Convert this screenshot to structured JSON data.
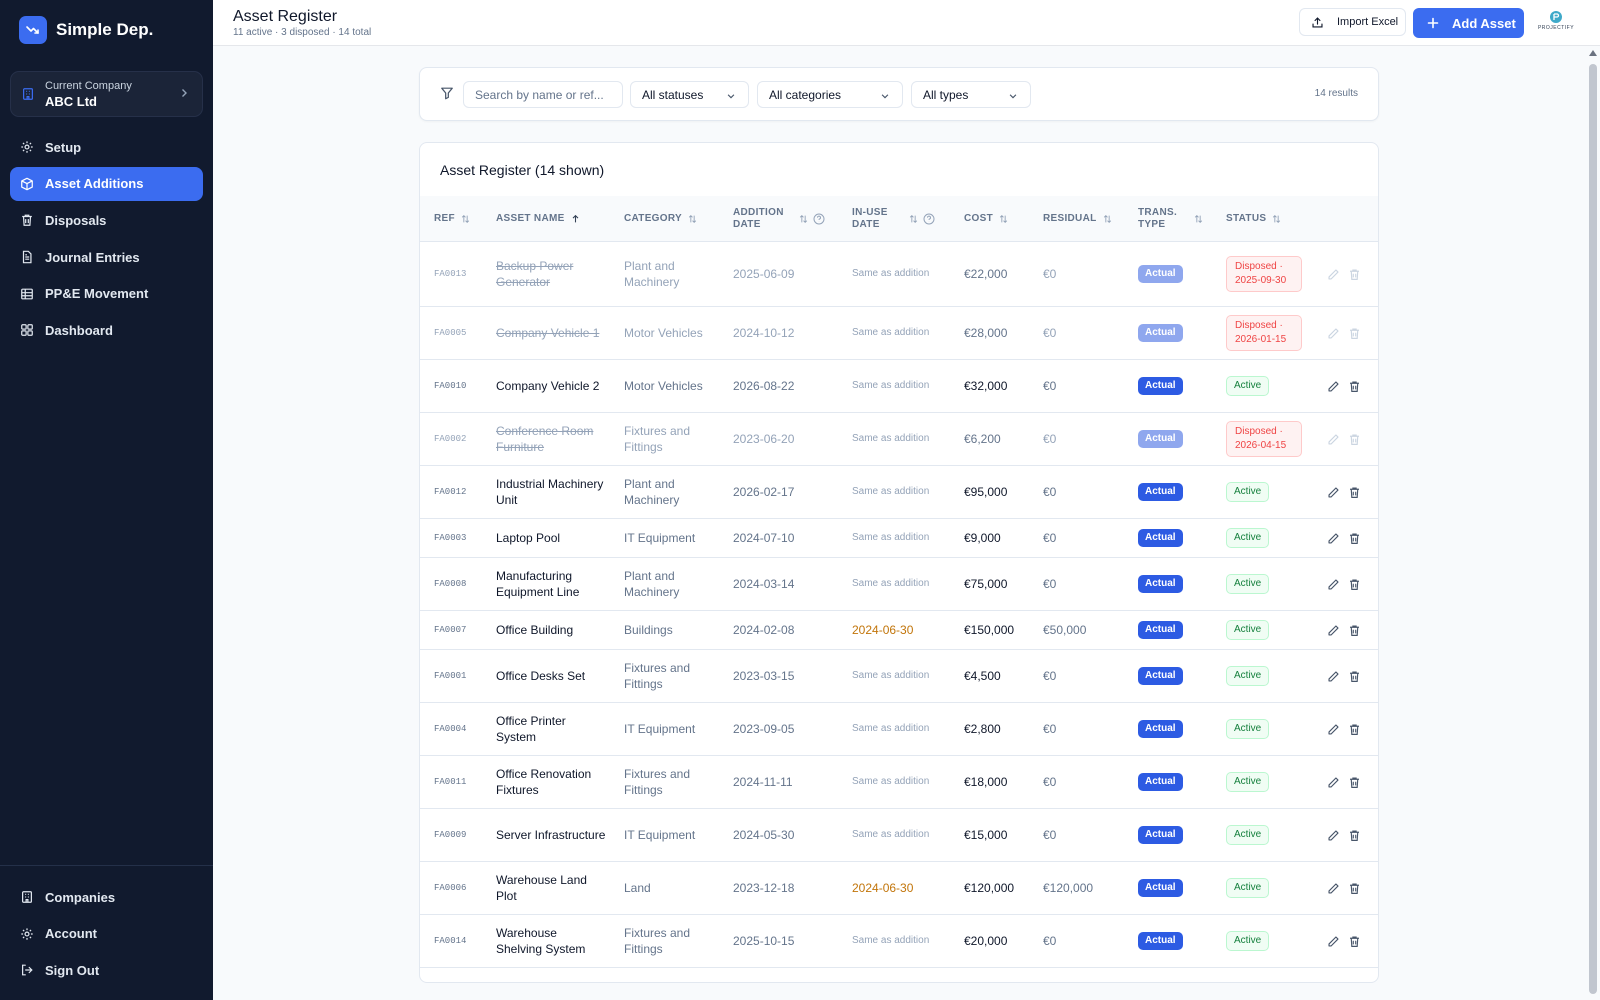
{
  "sidebar": {
    "brand": "Simple Dep.",
    "company_label": "Current Company",
    "company_name": "ABC Ltd",
    "nav": [
      {
        "label": "Setup",
        "icon": "gear-icon"
      },
      {
        "label": "Asset Additions",
        "icon": "box-icon",
        "active": true
      },
      {
        "label": "Disposals",
        "icon": "trash-icon"
      },
      {
        "label": "Journal Entries",
        "icon": "document-icon"
      },
      {
        "label": "PP&E Movement",
        "icon": "table-icon"
      },
      {
        "label": "Dashboard",
        "icon": "grid-icon"
      }
    ],
    "bottom_nav": [
      {
        "label": "Companies",
        "icon": "building-icon"
      },
      {
        "label": "Account",
        "icon": "gear-icon"
      },
      {
        "label": "Sign Out",
        "icon": "sign-out-icon"
      }
    ]
  },
  "header": {
    "title": "Asset Register",
    "subtitle": "11 active · 3 disposed · 14 total",
    "import_label": "Import Excel",
    "add_label": "Add Asset",
    "brand_mark": "PROJECTIFY"
  },
  "filters": {
    "search_placeholder": "Search by name or ref...",
    "status": "All statuses",
    "category": "All categories",
    "type": "All types",
    "results": "14 results"
  },
  "table": {
    "title": "Asset Register (14 shown)",
    "columns": {
      "ref": "REF",
      "name": "ASSET NAME",
      "category": "CATEGORY",
      "addition_date": "ADDITION DATE",
      "in_use_date": "IN-USE DATE",
      "cost": "COST",
      "residual": "RESIDUAL",
      "trans_type": "TRANS. TYPE",
      "status": "STATUS"
    },
    "rows": [
      {
        "ref": "FA0013",
        "name": "Backup Power Generator",
        "category": "Plant and Machinery",
        "addition_date": "2025-06-09",
        "in_use": "Same as addition",
        "cost": "€22,000",
        "residual": "€0",
        "type": "Actual",
        "status": "Disposed · 2025-09-30",
        "disposed": true
      },
      {
        "ref": "FA0005",
        "name": "Company Vehicle 1",
        "category": "Motor Vehicles",
        "addition_date": "2024-10-12",
        "in_use": "Same as addition",
        "cost": "€28,000",
        "residual": "€0",
        "type": "Actual",
        "status": "Disposed · 2026-01-15",
        "disposed": true
      },
      {
        "ref": "FA0010",
        "name": "Company Vehicle 2",
        "category": "Motor Vehicles",
        "addition_date": "2026-08-22",
        "in_use": "Same as addition",
        "cost": "€32,000",
        "residual": "€0",
        "type": "Actual",
        "status": "Active",
        "disposed": false
      },
      {
        "ref": "FA0002",
        "name": "Conference Room Furniture",
        "category": "Fixtures and Fittings",
        "addition_date": "2023-06-20",
        "in_use": "Same as addition",
        "cost": "€6,200",
        "residual": "€0",
        "type": "Actual",
        "status": "Disposed · 2026-04-15",
        "disposed": true
      },
      {
        "ref": "FA0012",
        "name": "Industrial Machinery Unit",
        "category": "Plant and Machinery",
        "addition_date": "2026-02-17",
        "in_use": "Same as addition",
        "cost": "€95,000",
        "residual": "€0",
        "type": "Actual",
        "status": "Active",
        "disposed": false
      },
      {
        "ref": "FA0003",
        "name": "Laptop Pool",
        "category": "IT Equipment",
        "addition_date": "2024-07-10",
        "in_use": "Same as addition",
        "cost": "€9,000",
        "residual": "€0",
        "type": "Actual",
        "status": "Active",
        "disposed": false
      },
      {
        "ref": "FA0008",
        "name": "Manufacturing Equipment Line",
        "category": "Plant and Machinery",
        "addition_date": "2024-03-14",
        "in_use": "Same as addition",
        "cost": "€75,000",
        "residual": "€0",
        "type": "Actual",
        "status": "Active",
        "disposed": false
      },
      {
        "ref": "FA0007",
        "name": "Office Building",
        "category": "Buildings",
        "addition_date": "2024-02-08",
        "in_use": "2024-06-30",
        "cost": "€150,000",
        "residual": "€50,000",
        "type": "Actual",
        "status": "Active",
        "disposed": false
      },
      {
        "ref": "FA0001",
        "name": "Office Desks Set",
        "category": "Fixtures and Fittings",
        "addition_date": "2023-03-15",
        "in_use": "Same as addition",
        "cost": "€4,500",
        "residual": "€0",
        "type": "Actual",
        "status": "Active",
        "disposed": false
      },
      {
        "ref": "FA0004",
        "name": "Office Printer System",
        "category": "IT Equipment",
        "addition_date": "2023-09-05",
        "in_use": "Same as addition",
        "cost": "€2,800",
        "residual": "€0",
        "type": "Actual",
        "status": "Active",
        "disposed": false
      },
      {
        "ref": "FA0011",
        "name": "Office Renovation Fixtures",
        "category": "Fixtures and Fittings",
        "addition_date": "2024-11-11",
        "in_use": "Same as addition",
        "cost": "€18,000",
        "residual": "€0",
        "type": "Actual",
        "status": "Active",
        "disposed": false
      },
      {
        "ref": "FA0009",
        "name": "Server Infrastructure",
        "category": "IT Equipment",
        "addition_date": "2024-05-30",
        "in_use": "Same as addition",
        "cost": "€15,000",
        "residual": "€0",
        "type": "Actual",
        "status": "Active",
        "disposed": false
      },
      {
        "ref": "FA0006",
        "name": "Warehouse Land Plot",
        "category": "Land",
        "addition_date": "2023-12-18",
        "in_use": "2024-06-30",
        "cost": "€120,000",
        "residual": "€120,000",
        "type": "Actual",
        "status": "Active",
        "disposed": false
      },
      {
        "ref": "FA0014",
        "name": "Warehouse Shelving System",
        "category": "Fixtures and Fittings",
        "addition_date": "2025-10-15",
        "in_use": "Same as addition",
        "cost": "€20,000",
        "residual": "€0",
        "type": "Actual",
        "status": "Active",
        "disposed": false
      }
    ]
  },
  "colors": {
    "sidebar_bg": "#111a2e",
    "accent": "#3b6cf0",
    "active_green": "#15803d",
    "disposed_red": "#ef4444",
    "in_use_orange": "#c2750a"
  }
}
